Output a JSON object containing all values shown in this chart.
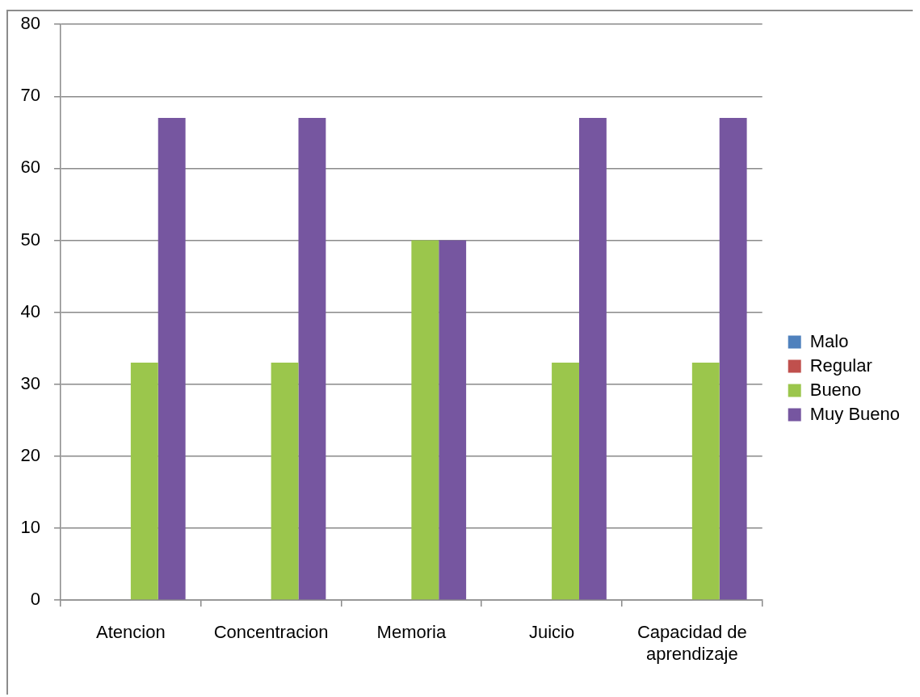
{
  "chart_data": {
    "type": "bar",
    "categories": [
      "Atencion",
      "Concentracion",
      "Memoria",
      "Juicio",
      "Capacidad de aprendizaje"
    ],
    "series": [
      {
        "name": "Malo",
        "color": "#4f81bd",
        "values": [
          0,
          0,
          0,
          0,
          0
        ]
      },
      {
        "name": "Regular",
        "color": "#c0504d",
        "values": [
          0,
          0,
          0,
          0,
          0
        ]
      },
      {
        "name": "Bueno",
        "color": "#9bc64c",
        "values": [
          33,
          33,
          50,
          33,
          33
        ]
      },
      {
        "name": "Muy Bueno",
        "color": "#7656a0",
        "values": [
          67,
          67,
          50,
          67,
          67
        ]
      }
    ],
    "ylim": [
      0,
      80
    ],
    "yticks": [
      0,
      10,
      20,
      30,
      40,
      50,
      60,
      70,
      80
    ],
    "grid": "y",
    "legend": "right"
  }
}
